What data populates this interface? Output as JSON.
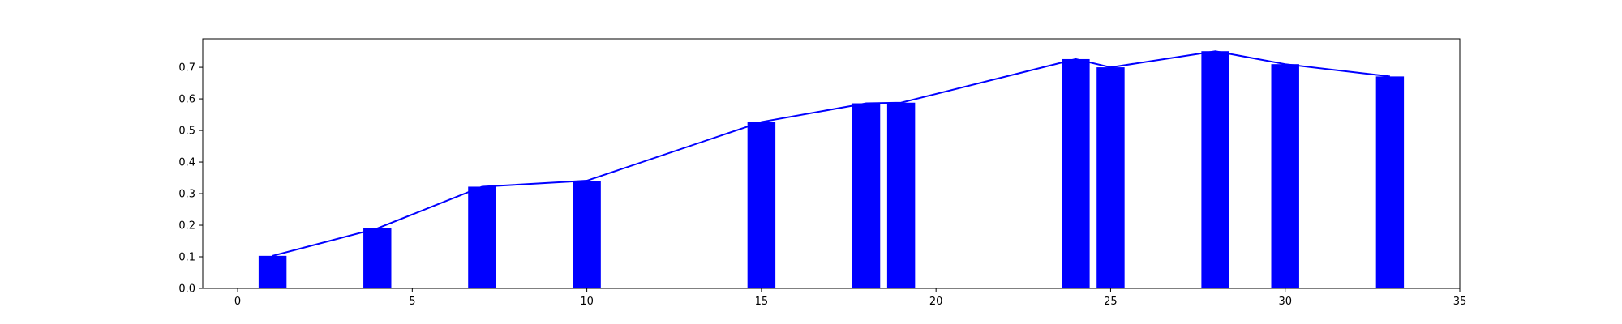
{
  "chart_data": {
    "type": "bar",
    "x": [
      1,
      4,
      7,
      10,
      15,
      18,
      19,
      24,
      25,
      28,
      30,
      33
    ],
    "values": [
      0.103,
      0.19,
      0.322,
      0.341,
      0.527,
      0.586,
      0.588,
      0.726,
      0.7,
      0.751,
      0.71,
      0.671
    ],
    "line_overlay": true,
    "xlim": [
      -1,
      35
    ],
    "ylim": [
      0,
      0.79
    ],
    "xticks": [
      "0",
      "5",
      "10",
      "15",
      "20",
      "25",
      "30",
      "35"
    ],
    "yticks": [
      "0.0",
      "0.1",
      "0.2",
      "0.3",
      "0.4",
      "0.5",
      "0.6",
      "0.7"
    ],
    "bar_width": 0.8,
    "grid": false,
    "colors": {
      "bars": "#0000ff",
      "line": "#0000ff",
      "axes": "#000000"
    }
  }
}
